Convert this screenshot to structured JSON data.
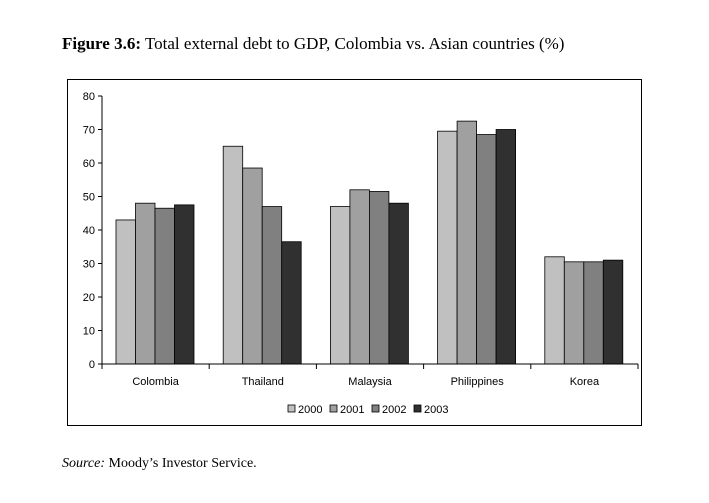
{
  "figure": {
    "label": "Figure 3.6:",
    "title_text": "Total external debt to GDP, Colombia vs. Asian countries (%)"
  },
  "source": {
    "label": "Source:",
    "text": "Moody’s Investor Service."
  },
  "colors": {
    "2000": "#c0c0c0",
    "2001": "#a0a0a0",
    "2002": "#808080",
    "2003": "#303030"
  },
  "chart_data": {
    "type": "bar",
    "title": "Total external debt to GDP, Colombia vs. Asian countries (%)",
    "xlabel": "",
    "ylabel": "",
    "ylim": [
      0,
      80
    ],
    "yticks": [
      0,
      10,
      20,
      30,
      40,
      50,
      60,
      70,
      80
    ],
    "grid": false,
    "legend_position": "bottom",
    "categories": [
      "Colombia",
      "Thailand",
      "Malaysia",
      "Philippines",
      "Korea"
    ],
    "series": [
      {
        "name": "2000",
        "values": [
          43,
          65,
          47,
          69.5,
          32
        ]
      },
      {
        "name": "2001",
        "values": [
          48,
          58.5,
          52,
          72.5,
          30.5
        ]
      },
      {
        "name": "2002",
        "values": [
          46.5,
          47,
          51.5,
          68.5,
          30.5
        ]
      },
      {
        "name": "2003",
        "values": [
          47.5,
          36.5,
          48,
          70,
          31
        ]
      }
    ]
  }
}
